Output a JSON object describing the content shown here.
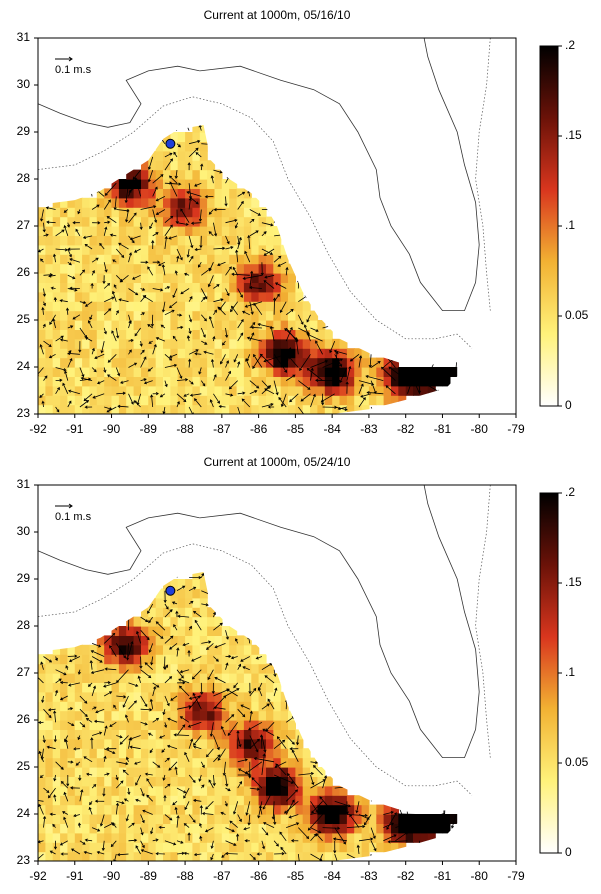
{
  "chart_data": [
    {
      "type": "heatmap",
      "title": "Current at 1000m, 05/16/10",
      "xlabel": "",
      "ylabel": "",
      "xlim": [
        -92,
        -79
      ],
      "ylim": [
        23,
        31
      ],
      "x_ticks": [
        "-92",
        "-91",
        "-90",
        "-89",
        "-88",
        "-87",
        "-86",
        "-85",
        "-84",
        "-83",
        "-82",
        "-81",
        "-80",
        "-79"
      ],
      "y_ticks": [
        "23",
        "24",
        "25",
        "26",
        "27",
        "28",
        "29",
        "30",
        "31"
      ],
      "colorbar": {
        "range": [
          0,
          0.2
        ],
        "ticks": [
          "0",
          "0.05",
          ".1",
          ".15",
          ".2"
        ],
        "colors": [
          "#ffffff",
          "#fff27a",
          "#f2b233",
          "#d9361e",
          "#6b1208",
          "#000000"
        ]
      },
      "scale_arrow_label": "0.1 m.s",
      "marker": {
        "lon": -88.4,
        "lat": 28.75,
        "color": "#1f3fd9"
      },
      "hotspots": [
        {
          "lon": -89.5,
          "lat": 27.9,
          "speed": 0.17
        },
        {
          "lon": -88.0,
          "lat": 27.4,
          "speed": 0.12
        },
        {
          "lon": -86.0,
          "lat": 25.8,
          "speed": 0.13
        },
        {
          "lon": -85.3,
          "lat": 24.3,
          "speed": 0.19
        },
        {
          "lon": -84.0,
          "lat": 23.9,
          "speed": 0.2
        },
        {
          "lon": -82.0,
          "lat": 23.8,
          "speed": 0.2
        },
        {
          "lon": -81.0,
          "lat": 23.8,
          "speed": 0.2
        }
      ]
    },
    {
      "type": "heatmap",
      "title": "Current at 1000m, 05/24/10",
      "xlabel": "",
      "ylabel": "",
      "xlim": [
        -92,
        -79
      ],
      "ylim": [
        23,
        31
      ],
      "x_ticks": [
        "-92",
        "-91",
        "-90",
        "-89",
        "-88",
        "-87",
        "-86",
        "-85",
        "-84",
        "-83",
        "-82",
        "-81",
        "-80",
        "-79"
      ],
      "y_ticks": [
        "23",
        "24",
        "25",
        "26",
        "27",
        "28",
        "29",
        "30",
        "31"
      ],
      "colorbar": {
        "range": [
          0,
          0.2
        ],
        "ticks": [
          "0",
          "0.05",
          ".1",
          ".15",
          ".2"
        ],
        "colors": [
          "#ffffff",
          "#fff27a",
          "#f2b233",
          "#d9361e",
          "#6b1208",
          "#000000"
        ]
      },
      "scale_arrow_label": "0.1 m.s",
      "marker": {
        "lon": -88.4,
        "lat": 28.75,
        "color": "#1f3fd9"
      },
      "hotspots": [
        {
          "lon": -89.6,
          "lat": 27.6,
          "speed": 0.16
        },
        {
          "lon": -87.5,
          "lat": 26.2,
          "speed": 0.13
        },
        {
          "lon": -86.2,
          "lat": 25.5,
          "speed": 0.14
        },
        {
          "lon": -85.5,
          "lat": 24.6,
          "speed": 0.19
        },
        {
          "lon": -84.0,
          "lat": 24.0,
          "speed": 0.2
        },
        {
          "lon": -82.0,
          "lat": 23.8,
          "speed": 0.2
        },
        {
          "lon": -81.0,
          "lat": 23.8,
          "speed": 0.2
        }
      ]
    }
  ]
}
